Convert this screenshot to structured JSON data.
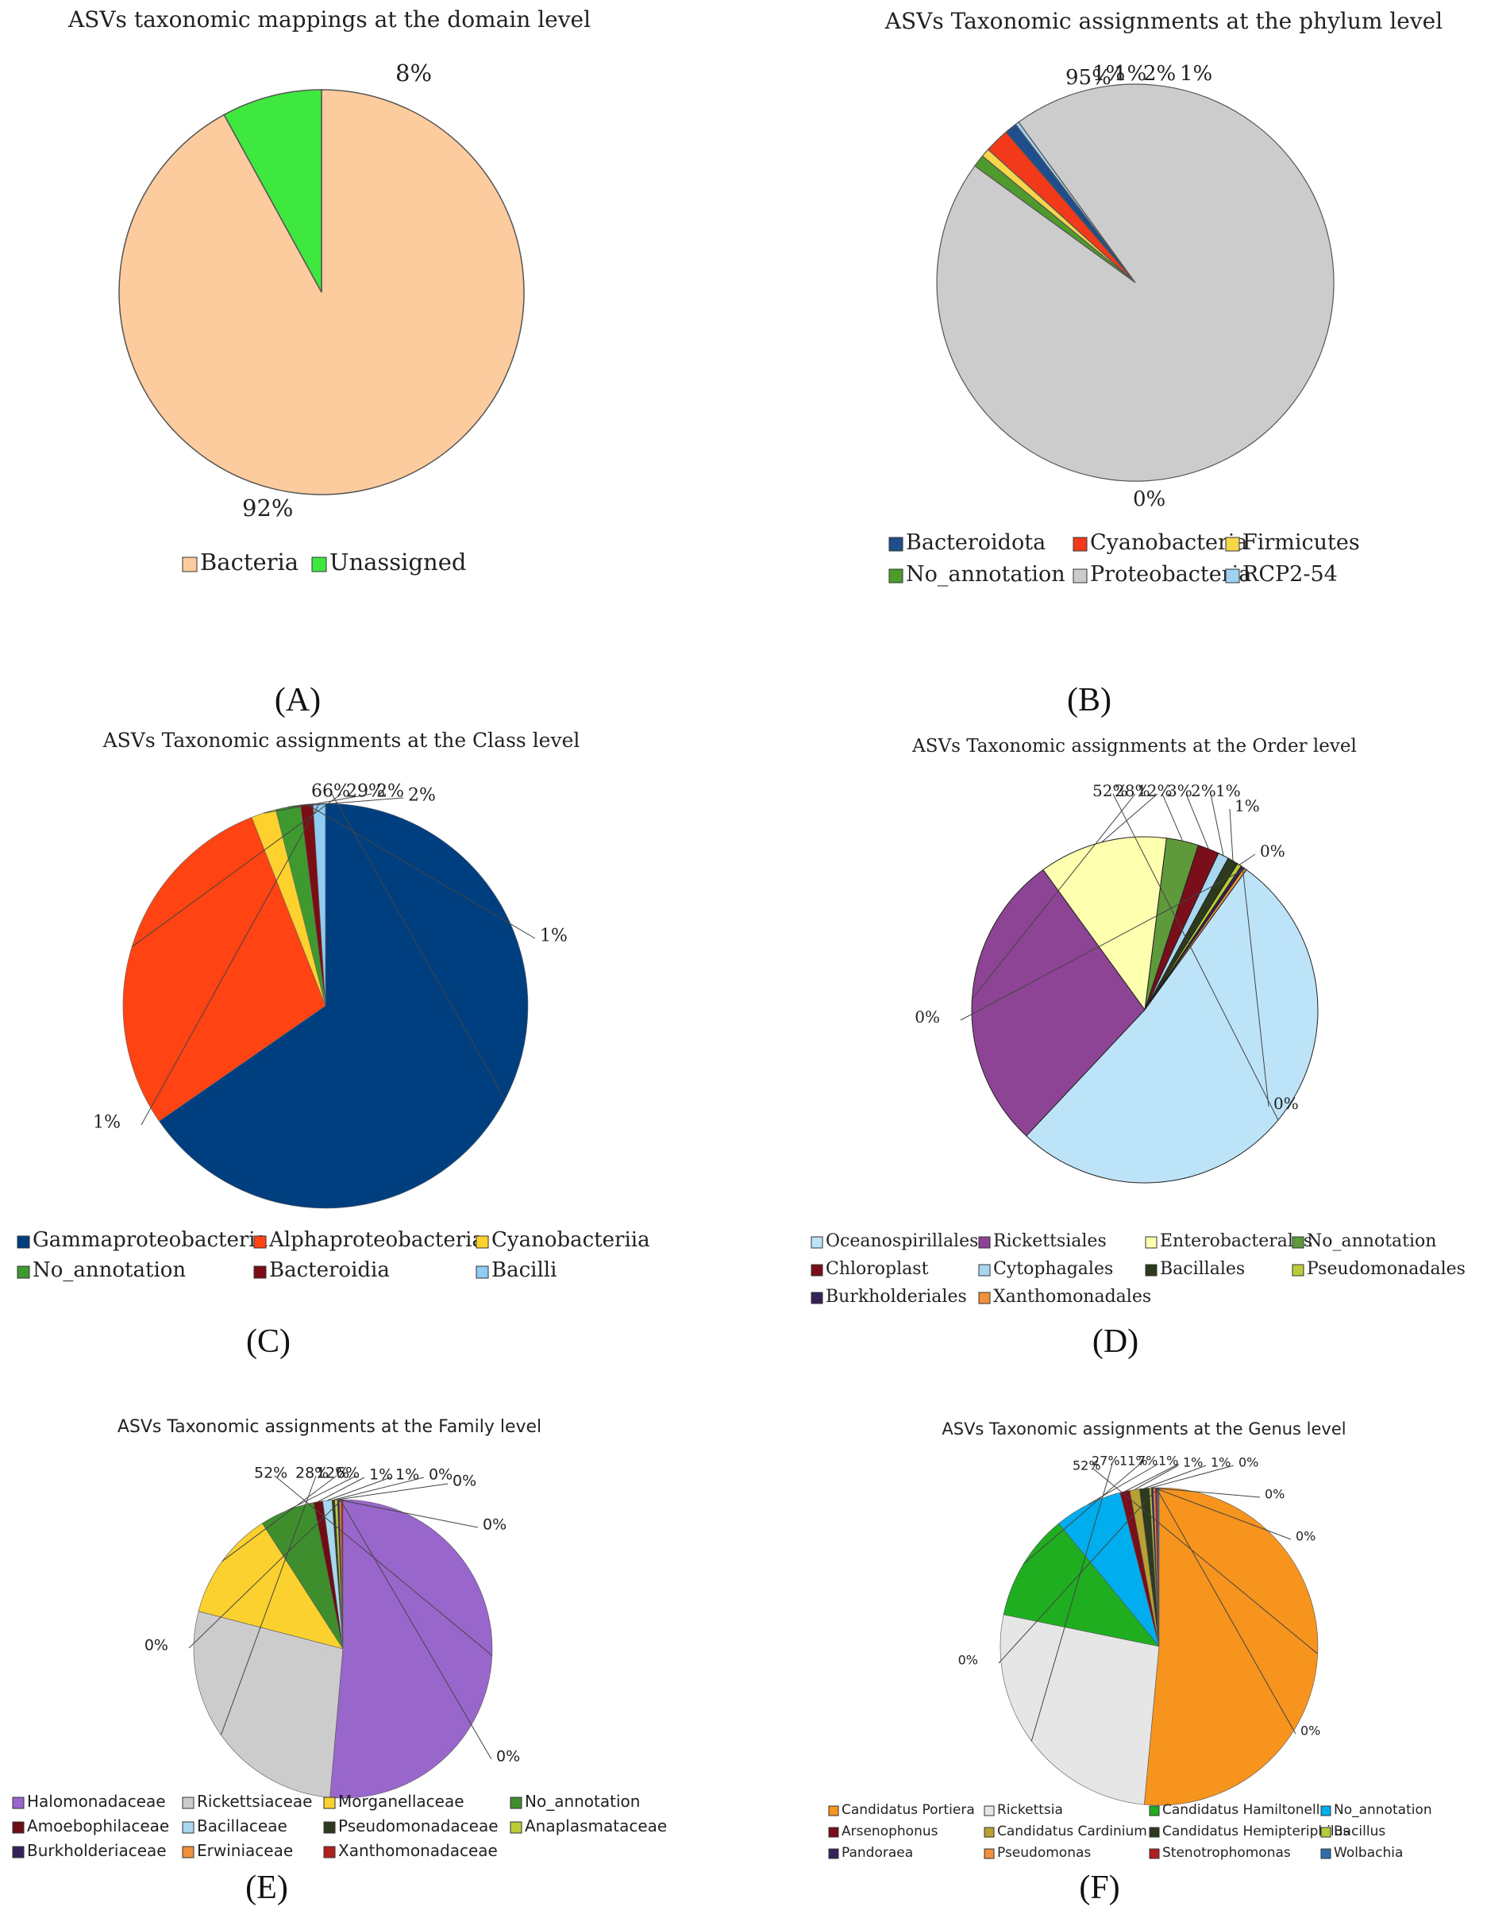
{
  "panel_letters": [
    "(A)",
    "(B)",
    "(C)",
    "(D)",
    "(E)",
    "(F)"
  ],
  "chart_data": [
    {
      "type": "pie",
      "title": "ASVs taxonomic mappings at the domain level",
      "categories": [
        "Bacteria",
        "Unassigned"
      ],
      "values": [
        92,
        8
      ],
      "labels": [
        "92%",
        "8%"
      ],
      "colors": [
        "#FCCB9E",
        "#3EE83E"
      ],
      "legend_items": [
        {
          "label": "Bacteria",
          "color": "#FCCB9E"
        },
        {
          "label": "Unassigned",
          "color": "#3EE83E"
        }
      ],
      "legend": "bottom"
    },
    {
      "type": "pie",
      "title": "ASVs Taxonomic assignments at the phylum level",
      "categories": [
        "Bacteroidota",
        "Cyanobacteria",
        "Firmicutes",
        "No_annotation",
        "Proteobacteria",
        "RCP2-54"
      ],
      "values": [
        1,
        2,
        0.7,
        1,
        95,
        0.3
      ],
      "labels": [
        "1%",
        "2%",
        "1%",
        "1%",
        "95%",
        "0%"
      ],
      "legend_items": [
        {
          "label": "Bacteroidota",
          "color": "#1F4E8C"
        },
        {
          "label": "Cyanobacteria",
          "color": "#F23A1A"
        },
        {
          "label": "Firmicutes",
          "color": "#F7D64A"
        },
        {
          "label": "No_annotation",
          "color": "#4E9A2C"
        },
        {
          "label": "Proteobacteria",
          "color": "#CCCCCC"
        },
        {
          "label": "RCP2-54",
          "color": "#9FD1F2"
        }
      ],
      "legend": "bottom"
    },
    {
      "type": "pie",
      "title": "ASVs Taxonomic assignments at the Class level",
      "categories": [
        "Gammaproteobacteria",
        "Alphaproteobacteria",
        "Cyanobacteriia",
        "No_annotation",
        "Bacteroidia",
        "Bacilli"
      ],
      "values": [
        66,
        29,
        2,
        2,
        1,
        1
      ],
      "labels": [
        "66%",
        "29%",
        "2%",
        "2%",
        "1%",
        "1%"
      ],
      "legend_items": [
        {
          "label": "Gammaproteobacteria",
          "color": "#003F7F"
        },
        {
          "label": "Alphaproteobacteria",
          "color": "#FF4312"
        },
        {
          "label": "Cyanobacteriia",
          "color": "#FFD12E"
        },
        {
          "label": "No_annotation",
          "color": "#3E9A2E"
        },
        {
          "label": "Bacteroidia",
          "color": "#7A0E14"
        },
        {
          "label": "Bacilli",
          "color": "#8FCBF2"
        }
      ],
      "legend": "bottom"
    },
    {
      "type": "pie",
      "title": "ASVs Taxonomic assignments at the Order level",
      "categories": [
        "Oceanospirillales",
        "Rickettsiales",
        "Enterobacterales",
        "No_annotation",
        "Chloroplast",
        "Cytophagales",
        "Bacillales",
        "Pseudomonadales",
        "Burkholderiales",
        "Xanthomonadales"
      ],
      "values": [
        52,
        28,
        12,
        3,
        2,
        1,
        1,
        0.4,
        0.3,
        0.3
      ],
      "labels": [
        "52%",
        "28%",
        "12%",
        "3%",
        "2%",
        "1%",
        "1%",
        "0%",
        "0%",
        "0%"
      ],
      "legend_items": [
        {
          "label": "Oceanospirillales",
          "color": "#BCE3F8"
        },
        {
          "label": "Rickettsiales",
          "color": "#8E4494"
        },
        {
          "label": "Enterobacterales",
          "color": "#FFFFB0"
        },
        {
          "label": "No_annotation",
          "color": "#5E9A3C"
        },
        {
          "label": "Chloroplast",
          "color": "#7A0E1A"
        },
        {
          "label": "Cytophagales",
          "color": "#A8D8F0"
        },
        {
          "label": "Bacillales",
          "color": "#2E3A1E"
        },
        {
          "label": "Pseudomonadales",
          "color": "#B9CC38"
        },
        {
          "label": "Burkholderiales",
          "color": "#33235A"
        },
        {
          "label": "Xanthomonadales",
          "color": "#F0913A"
        }
      ],
      "legend": "bottom"
    },
    {
      "type": "pie",
      "title": "ASVs Taxonomic assignments at the Family level",
      "categories": [
        "Halomonadaceae",
        "Rickettsiaceae",
        "Morganellaceae",
        "No_annotation",
        "Amoebophilaceae",
        "Bacillaceae",
        "Pseudomonadaceae",
        "Anaplasmataceae",
        "Burkholderiaceae",
        "Erwiniaceae",
        "Xanthomonadaceae"
      ],
      "values": [
        52,
        28,
        12,
        6,
        1,
        1,
        0.3,
        0.3,
        0.2,
        0.2,
        0.2
      ],
      "labels": [
        "52%",
        "28%",
        "12%",
        "6%",
        "1%",
        "1%",
        "0%",
        "0%",
        "0%",
        "0%",
        "0%"
      ],
      "legend_items": [
        {
          "label": "Halomonadaceae",
          "color": "#9966CC"
        },
        {
          "label": "Rickettsiaceae",
          "color": "#CCCCCC"
        },
        {
          "label": "Morganellaceae",
          "color": "#FAD12E"
        },
        {
          "label": "No_annotation",
          "color": "#3E8E2E"
        },
        {
          "label": "Amoebophilaceae",
          "color": "#6E0E14"
        },
        {
          "label": "Bacillaceae",
          "color": "#A8D8F0"
        },
        {
          "label": "Pseudomonadaceae",
          "color": "#2E3A1E"
        },
        {
          "label": "Anaplasmataceae",
          "color": "#B9CC38"
        },
        {
          "label": "Burkholderiaceae",
          "color": "#33235A"
        },
        {
          "label": "Erwiniaceae",
          "color": "#F0913A"
        },
        {
          "label": "Xanthomonadaceae",
          "color": "#B01E1E"
        }
      ],
      "legend": "bottom"
    },
    {
      "type": "pie",
      "title": "ASVs Taxonomic assignments at the Genus level",
      "categories": [
        "Candidatus Portiera",
        "Rickettsia",
        "Candidatus Hamiltonella",
        "No_annotation",
        "Arsenophonus",
        "Candidatus Cardinium",
        "Candidatus Hemipteriphilus",
        "Bacillus",
        "Pandoraea",
        "Pseudomonas",
        "Stenotrophomonas",
        "Wolbachia"
      ],
      "values": [
        52,
        27,
        11,
        7,
        1,
        1,
        1,
        0.2,
        0.2,
        0.2,
        0.2,
        0.2
      ],
      "labels": [
        "52%",
        "27%",
        "11%",
        "7%",
        "1%",
        "1%",
        "1%",
        "0%",
        "0%",
        "0%",
        "0%",
        "0%"
      ],
      "legend_items": [
        {
          "label": "Candidatus Portiera",
          "color": "#F7941D"
        },
        {
          "label": "Rickettsia",
          "color": "#E6E6E6"
        },
        {
          "label": "Candidatus Hamiltonella",
          "color": "#1FAE1F"
        },
        {
          "label": "No_annotation",
          "color": "#00AEEF"
        },
        {
          "label": "Arsenophonus",
          "color": "#7A0E1A"
        },
        {
          "label": "Candidatus Cardinium",
          "color": "#B8A032"
        },
        {
          "label": "Candidatus Hemipteriphilus",
          "color": "#2E3A1E"
        },
        {
          "label": "Bacillus",
          "color": "#B9CC38"
        },
        {
          "label": "Pandoraea",
          "color": "#33235A"
        },
        {
          "label": "Pseudomonas",
          "color": "#F0913A"
        },
        {
          "label": "Stenotrophomonas",
          "color": "#B01E1E"
        },
        {
          "label": "Wolbachia",
          "color": "#2E6EAE"
        }
      ],
      "legend": "bottom"
    }
  ]
}
